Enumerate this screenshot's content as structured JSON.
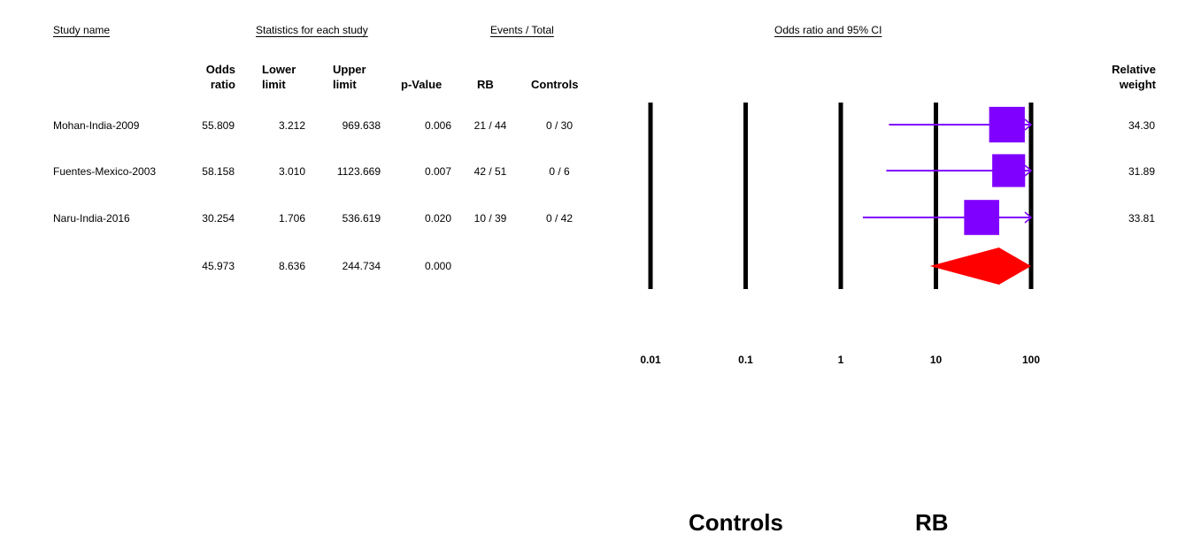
{
  "headers": {
    "study": "Study name",
    "stats": "Statistics for each study",
    "events": "Events / Total",
    "plot": "Odds ratio and 95% CI"
  },
  "columns": {
    "odds_ratio": [
      "Odds",
      "ratio"
    ],
    "lower": [
      "Lower",
      "limit"
    ],
    "upper": [
      "Upper",
      "limit"
    ],
    "p_value": "p-Value",
    "rb": "RB",
    "controls": "Controls",
    "weight": [
      "Relative",
      "weight"
    ]
  },
  "rows": [
    {
      "name": "Mohan-India-2009",
      "or": "55.809",
      "lower": "3.212",
      "upper": "969.638",
      "p": "0.006",
      "rb": "21 / 44",
      "controls": "0 / 30",
      "weight": "34.30"
    },
    {
      "name": "Fuentes-Mexico-2003",
      "or": "58.158",
      "lower": "3.010",
      "upper": "1123.669",
      "p": "0.007",
      "rb": "42 / 51",
      "controls": "0 / 6",
      "weight": "31.89"
    },
    {
      "name": "Naru-India-2016",
      "or": "30.254",
      "lower": "1.706",
      "upper": "536.619",
      "p": "0.020",
      "rb": "10 / 39",
      "controls": "0 / 42",
      "weight": "33.81"
    }
  ],
  "summary": {
    "or": "45.973",
    "lower": "8.636",
    "upper": "244.734",
    "p": "0.000"
  },
  "chart_data": {
    "type": "forest",
    "scale": "log",
    "xlim": [
      0.01,
      100
    ],
    "ticks": [
      {
        "value": 0.01,
        "label": "0.01"
      },
      {
        "value": 0.1,
        "label": "0.1"
      },
      {
        "value": 1,
        "label": "1"
      },
      {
        "value": 10,
        "label": "10"
      },
      {
        "value": 100,
        "label": "100"
      }
    ],
    "studies": [
      {
        "or": 55.809,
        "lower": 3.212,
        "upper": 969.638,
        "weight": 34.3
      },
      {
        "or": 58.158,
        "lower": 3.01,
        "upper": 1123.669,
        "weight": 31.89
      },
      {
        "or": 30.254,
        "lower": 1.706,
        "upper": 536.619,
        "weight": 33.81
      }
    ],
    "summary": {
      "or": 45.973,
      "lower": 8.636,
      "upper": 244.734
    },
    "colors": {
      "study": "#8000ff",
      "summary": "#ff0000",
      "lines": "#000000"
    },
    "favours_left": "Controls",
    "favours_right": "RB"
  }
}
